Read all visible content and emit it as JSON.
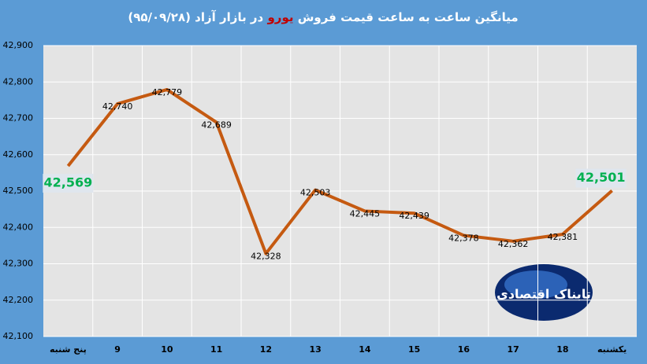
{
  "chart_data": {
    "type": "line",
    "title": [
      "میانگین ساعت به ساعت قیمت فروش ",
      "یورو",
      " در بازار آزاد (۹۵/۰۹/۲۸)"
    ],
    "title_colors": [
      "#ffffff",
      "#c00000",
      "#ffffff"
    ],
    "categories": [
      "پنج شنبه",
      "9",
      "10",
      "11",
      "12",
      "13",
      "14",
      "15",
      "16",
      "17",
      "18",
      "یکشنبه"
    ],
    "series": [
      {
        "name": "یورو",
        "color": "#c55a11",
        "values": [
          42569,
          42740,
          42779,
          42689,
          42328,
          42503,
          42445,
          42439,
          42378,
          42362,
          42381,
          42501
        ],
        "value_labels": [
          "42,569",
          "42,740",
          "42,779",
          "42,689",
          "42,328",
          "42,503",
          "42,445",
          "42,439",
          "42,378",
          "42,362",
          "42,381",
          "42,501"
        ]
      }
    ],
    "highlighted": [
      0,
      11
    ],
    "highlight_color": "#00b050",
    "ylim": [
      42100,
      42900
    ],
    "yticks": [
      {
        "value": 42100,
        "label": "42,100"
      },
      {
        "value": 42200,
        "label": "42,200"
      },
      {
        "value": 42300,
        "label": "42,300"
      },
      {
        "value": 42400,
        "label": "42,400"
      },
      {
        "value": 42500,
        "label": "42,500"
      },
      {
        "value": 42600,
        "label": "42,600"
      },
      {
        "value": 42700,
        "label": "42,700"
      },
      {
        "value": 42800,
        "label": "42,800"
      },
      {
        "value": 42900,
        "label": "42,900"
      }
    ],
    "grid": true,
    "watermark": "تابناک اقتصادی"
  }
}
